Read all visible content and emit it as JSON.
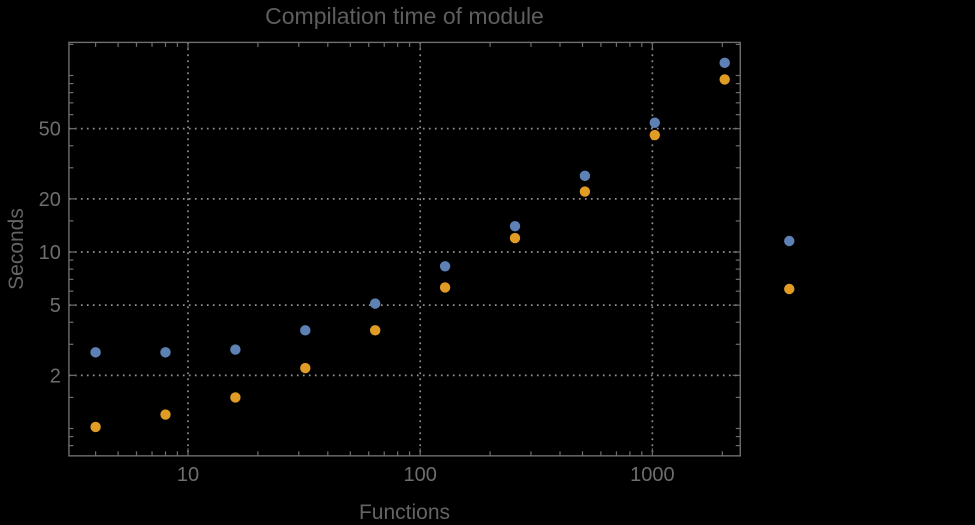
{
  "title": "Compilation time of module",
  "colors": {
    "background": "#000000",
    "frame": "#6e6e6e",
    "gridline": "#909090",
    "title_text": "#5e5e5e",
    "axis_label_text": "#646464",
    "tick_label_text": "#6e6e6e",
    "series_blue": "#5E81B5",
    "series_orange": "#E09C24"
  },
  "chart_data": {
    "type": "scatter",
    "title": "Compilation time of module",
    "xlabel": "Functions",
    "ylabel": "Seconds",
    "x_scale": "log",
    "y_scale": "log",
    "grid": "dotted",
    "x_range": [
      3.07,
      2390
    ],
    "y_range": [
      0.7,
      154
    ],
    "x": [
      4,
      8,
      16,
      32,
      64,
      128,
      256,
      512,
      1024,
      2048
    ],
    "series": [
      {
        "name": "blue",
        "color": "#5E81B5",
        "values": [
          2.7,
          2.7,
          2.8,
          3.6,
          5.1,
          8.3,
          14,
          27,
          54,
          118
        ]
      },
      {
        "name": "orange",
        "color": "#E09C24",
        "values": [
          1.02,
          1.2,
          1.5,
          2.2,
          3.6,
          6.3,
          12,
          22,
          46,
          95
        ]
      }
    ],
    "x_ticks": [
      10,
      100,
      1000
    ],
    "x_tick_labels": [
      "10",
      "100",
      "1000"
    ],
    "x_minor_ticks": [
      4,
      5,
      6,
      7,
      8,
      9,
      20,
      30,
      40,
      50,
      60,
      70,
      80,
      90,
      200,
      300,
      400,
      500,
      600,
      700,
      800,
      900,
      2000
    ],
    "y_ticks": [
      2,
      5,
      10,
      20,
      50
    ],
    "y_tick_labels": [
      "2",
      "5",
      "10",
      "20",
      "50"
    ],
    "y_minor_ticks": [
      0.7,
      0.8,
      0.9,
      1,
      1.5,
      3,
      4,
      6,
      7,
      8,
      9,
      15,
      30,
      40,
      60,
      70,
      80,
      90,
      100,
      150
    ],
    "legend_position": "right-outside",
    "legend": {
      "entries": [
        {
          "marker_color": "#5E81B5",
          "label": ""
        },
        {
          "marker_color": "#E09C24",
          "label": ""
        }
      ]
    }
  }
}
